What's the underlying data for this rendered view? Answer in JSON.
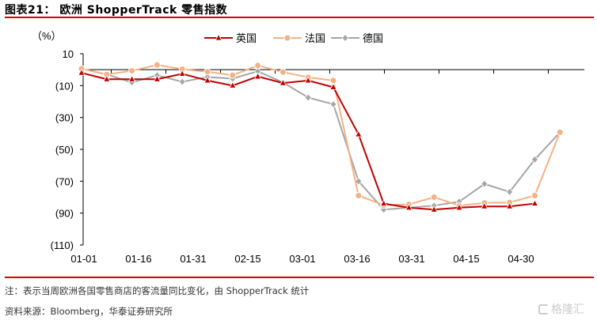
{
  "title": "图表21：  欧洲 ShopperTrack 零售指数",
  "note": "注：表示当周欧洲各国零售商店的客流量同比变化，由 ShopperTrack 统计",
  "source": "资料来源：Bloomberg，华泰证券研究所",
  "watermark": "格隆汇",
  "chart_data": {
    "type": "line",
    "ylabel": "（%）",
    "ylim": [
      -110,
      10
    ],
    "yticks": [
      10,
      -10,
      -30,
      -50,
      -70,
      -90,
      -110
    ],
    "ytick_labels": [
      "10",
      "(10)",
      "(30)",
      "(50)",
      "(70)",
      "(90)",
      "(110)"
    ],
    "xtick_labels": [
      "01-01",
      "01-16",
      "01-31",
      "02-15",
      "03-01",
      "03-16",
      "03-31",
      "04-15",
      "04-30"
    ],
    "grid": false,
    "legend": "top",
    "x": [
      "01-01",
      "01-08",
      "01-15",
      "01-22",
      "01-29",
      "02-05",
      "02-12",
      "02-19",
      "02-26",
      "03-04",
      "03-11",
      "03-18",
      "03-25",
      "04-01",
      "04-08",
      "04-15",
      "04-22",
      "04-29",
      "05-06",
      "05-13"
    ],
    "series": [
      {
        "name": "英国",
        "color": "#c00000",
        "marker": "triangle",
        "values": [
          -2,
          -6,
          -6,
          -6,
          -2.6,
          -6.8,
          -10,
          -4.3,
          -8.4,
          -6.8,
          -11,
          -40.6,
          -84,
          -86.6,
          -87.8,
          -86.6,
          -85.8,
          -85.8,
          -84,
          null
        ]
      },
      {
        "name": "法国",
        "color": "#f4b183",
        "marker": "circle",
        "values": [
          0.6,
          -3,
          -0.7,
          3,
          0.3,
          -1.3,
          -3.5,
          2.6,
          -1.5,
          -4.8,
          -6.8,
          -79,
          -85,
          -84.5,
          -80,
          -85.3,
          -83.6,
          -83.3,
          -79,
          -39.3
        ]
      },
      {
        "name": "德国",
        "color": "#a6a6a6",
        "marker": "diamond",
        "values": [
          0.6,
          -3,
          -8,
          -3.5,
          -7.6,
          -4.6,
          -5.6,
          -1,
          -8,
          -17.5,
          -21.7,
          -70,
          -87.8,
          -86.6,
          -85.3,
          -82.8,
          -71.7,
          -76.7,
          -56.4,
          -39.3
        ]
      }
    ]
  }
}
